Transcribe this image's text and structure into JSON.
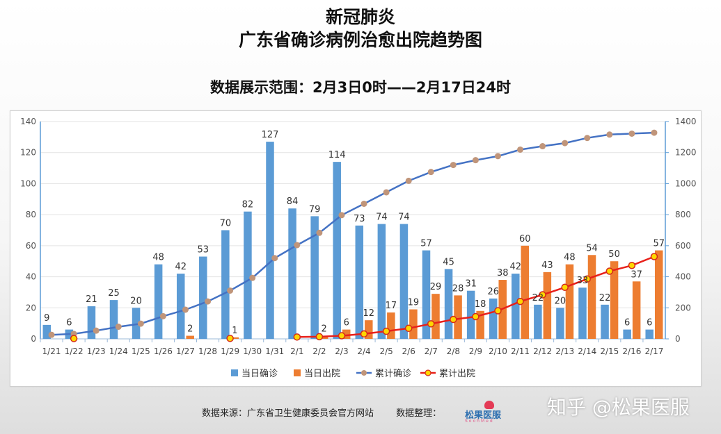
{
  "title": {
    "line1": "新冠肺炎",
    "line2": "广东省确诊病例治愈出院趋势图"
  },
  "subtitle": "数据展示范围：2月3日0时——2月17日24时",
  "footer": {
    "source": "数据来源：广东省卫生健康委员会官方网站",
    "organizer": "数据整理："
  },
  "logo": {
    "name": "松果医服",
    "sub": "SoohMed"
  },
  "watermark": "知乎 @松果医服",
  "chart_data": {
    "type": "bar",
    "categories": [
      "1/21",
      "1/22",
      "1/23",
      "1/24",
      "1/25",
      "1/26",
      "1/27",
      "1/28",
      "1/29",
      "1/30",
      "1/31",
      "2/1",
      "2/2",
      "2/3",
      "2/4",
      "2/5",
      "2/6",
      "2/7",
      "2/8",
      "2/9",
      "2/10",
      "2/11",
      "2/12",
      "2/13",
      "2/14",
      "2/15",
      "2/16",
      "2/17"
    ],
    "series": [
      {
        "name": "当日确诊",
        "type": "bar",
        "axis": "left",
        "color": "#5b9bd5",
        "values": [
          9,
          6,
          21,
          25,
          20,
          48,
          42,
          53,
          70,
          82,
          127,
          84,
          79,
          114,
          73,
          74,
          74,
          57,
          45,
          31,
          26,
          42,
          22,
          20,
          33,
          22,
          6,
          6
        ]
      },
      {
        "name": "当日出院",
        "type": "bar",
        "axis": "left",
        "color": "#ed7d31",
        "values": [
          null,
          null,
          null,
          null,
          null,
          null,
          2,
          null,
          1,
          null,
          null,
          null,
          2,
          6,
          12,
          17,
          19,
          29,
          28,
          18,
          38,
          60,
          43,
          48,
          54,
          50,
          37,
          57
        ]
      },
      {
        "name": "累计确诊",
        "type": "line",
        "axis": "right",
        "color": "#4472c4",
        "marker_color": "#c0957a",
        "values": [
          26,
          32,
          53,
          78,
          98,
          146,
          188,
          241,
          311,
          393,
          520,
          604,
          683,
          797,
          870,
          944,
          1018,
          1075,
          1120,
          1151,
          1177,
          1219,
          1241,
          1261,
          1294,
          1316,
          1322,
          1328
        ]
      },
      {
        "name": "累计出院",
        "type": "line",
        "axis": "right",
        "color": "#e8201a",
        "marker_color": "#ffd700",
        "values": [
          null,
          2,
          null,
          null,
          null,
          null,
          null,
          null,
          3,
          null,
          null,
          12,
          14,
          20,
          32,
          49,
          68,
          97,
          125,
          143,
          181,
          241,
          284,
          332,
          386,
          436,
          473,
          530
        ]
      }
    ],
    "bar_labels": {
      "当日确诊": [
        9,
        6,
        21,
        25,
        20,
        48,
        42,
        53,
        70,
        82,
        127,
        84,
        79,
        114,
        73,
        74,
        74,
        57,
        45,
        31,
        26,
        42,
        22,
        20,
        33,
        22,
        6,
        6
      ],
      "当日出院": [
        null,
        null,
        null,
        null,
        null,
        null,
        2,
        null,
        1,
        null,
        null,
        null,
        2,
        6,
        12,
        17,
        19,
        29,
        28,
        18,
        38,
        60,
        43,
        48,
        54,
        50,
        37,
        57
      ]
    },
    "y_left": {
      "min": 0,
      "max": 140,
      "ticks": [
        0,
        20,
        40,
        60,
        80,
        100,
        120,
        140
      ]
    },
    "y_right": {
      "min": 0,
      "max": 1400,
      "ticks": [
        0,
        200,
        400,
        600,
        800,
        1000,
        1200,
        1400
      ]
    },
    "grid": true,
    "legend_position": "bottom"
  }
}
